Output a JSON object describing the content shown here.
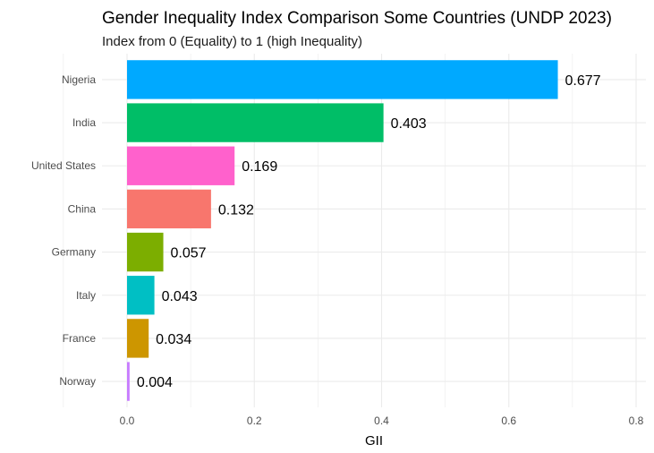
{
  "chart_data": {
    "type": "bar",
    "orientation": "horizontal",
    "title": "Gender Inequality Index Comparison Some Countries (UNDP 2023)",
    "subtitle": "Index from 0 (Equality) to 1 (high Inequality)",
    "xlabel": "GII",
    "ylabel": "",
    "xlim": [
      0,
      0.8
    ],
    "x_ticks": [
      0.0,
      0.2,
      0.4,
      0.6,
      0.8
    ],
    "x_tick_labels": [
      "0.0",
      "0.2",
      "0.4",
      "0.6",
      "0.8"
    ],
    "grid": true,
    "legend": "none",
    "categories": [
      "Nigeria",
      "India",
      "United States",
      "China",
      "Germany",
      "Italy",
      "France",
      "Norway"
    ],
    "values": [
      0.677,
      0.403,
      0.169,
      0.132,
      0.057,
      0.043,
      0.034,
      0.004
    ],
    "value_labels": [
      "0.677",
      "0.403",
      "0.169",
      "0.132",
      "0.057",
      "0.043",
      "0.034",
      "0.004"
    ],
    "colors": [
      "#00A9FF",
      "#00BE67",
      "#FF61CC",
      "#F8766D",
      "#7CAE00",
      "#00BFC4",
      "#CD9600",
      "#C77CFF"
    ]
  }
}
